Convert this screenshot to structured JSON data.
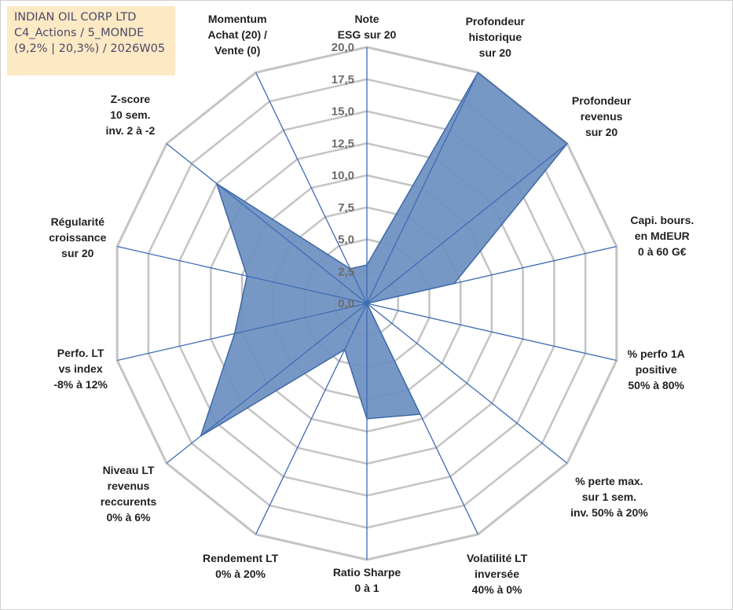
{
  "info": {
    "line1": "INDIAN OIL CORP LTD",
    "line2": "C4_Actions / 5_MONDE",
    "line3": "(9,2% | 20,3%) / 2026W05"
  },
  "chart_data": {
    "type": "radar",
    "title": "INDIAN OIL CORP LTD",
    "axis_min": 0,
    "axis_max": 20,
    "tick_step": 2.5,
    "tick_labels": [
      "0,0",
      "2,5",
      "5,0",
      "7,5",
      "10,0",
      "12,5",
      "15,0",
      "17,5",
      "20,0"
    ],
    "grid": true,
    "colors": {
      "fill": "#6b8fc0",
      "stroke": "#3e68a8",
      "axis": "#3e6bb4",
      "grid": "#c4c4c4"
    },
    "axes": [
      {
        "lines": [
          "Note",
          "ESG sur 20"
        ]
      },
      {
        "lines": [
          "Profondeur",
          "historique",
          "sur 20"
        ]
      },
      {
        "lines": [
          "Profondeur",
          "revenus",
          "sur 20"
        ]
      },
      {
        "lines": [
          "Capi. bours.",
          "en MdEUR",
          "0 à 60 G€"
        ]
      },
      {
        "lines": [
          "% perfo 1A",
          "positive",
          "50% à 80%"
        ]
      },
      {
        "lines": [
          "% perte max.",
          "sur 1 sem.",
          "inv. 50% à 20%"
        ]
      },
      {
        "lines": [
          "Volatilité LT",
          "inversée",
          "40% à 0%"
        ]
      },
      {
        "lines": [
          "Ratio Sharpe",
          "0 à 1"
        ]
      },
      {
        "lines": [
          "Rendement LT",
          "0% à 20%"
        ]
      },
      {
        "lines": [
          "Niveau LT",
          "revenus",
          "reccurents",
          "0% à 6%"
        ]
      },
      {
        "lines": [
          "Perfo. LT",
          "vs index",
          "-8% à 12%"
        ]
      },
      {
        "lines": [
          "Régularité",
          "croissance",
          "sur 20"
        ]
      },
      {
        "lines": [
          "Z-score",
          "10 sem.",
          "inv. 2 à -2"
        ]
      },
      {
        "lines": [
          "Momentum",
          "Achat (20) /",
          "Vente (0)"
        ]
      }
    ],
    "series": [
      {
        "name": "INDIAN OIL CORP LTD",
        "values": [
          3.0,
          20.0,
          20.0,
          7.0,
          0.0,
          0.0,
          9.6,
          9.0,
          4.0,
          16.6,
          10.6,
          9.6,
          15.0,
          3.0
        ]
      }
    ]
  }
}
